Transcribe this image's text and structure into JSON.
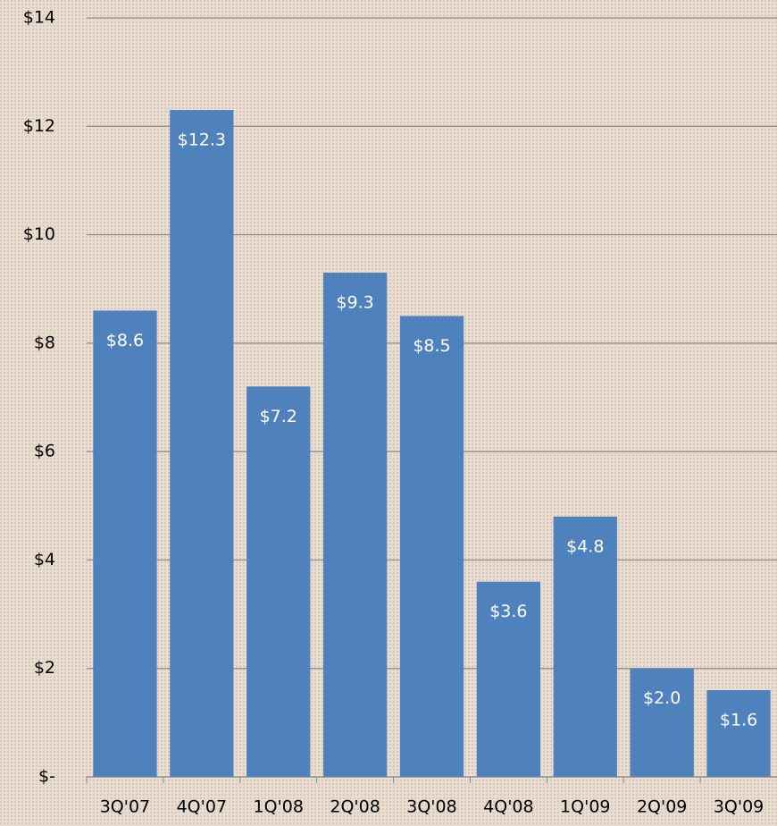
{
  "chart_data": {
    "type": "bar",
    "categories": [
      "3Q'07",
      "4Q'07",
      "1Q'08",
      "2Q'08",
      "3Q'08",
      "4Q'08",
      "1Q'09",
      "2Q'09",
      "3Q'09"
    ],
    "values": [
      8.6,
      12.3,
      7.2,
      9.3,
      8.5,
      3.6,
      4.8,
      2.0,
      1.6
    ],
    "value_labels": [
      "$8.6",
      "$12.3",
      "$7.2",
      "$9.3",
      "$8.5",
      "$3.6",
      "$4.8",
      "$2.0",
      "$1.6"
    ],
    "color": "#4f81bd",
    "ylim": [
      0,
      14
    ],
    "yticks": [
      {
        "value": 0,
        "label": "$-"
      },
      {
        "value": 2,
        "label": "$2"
      },
      {
        "value": 4,
        "label": "$4"
      },
      {
        "value": 6,
        "label": "$6"
      },
      {
        "value": 8,
        "label": "$8"
      },
      {
        "value": 10,
        "label": "$10"
      },
      {
        "value": 12,
        "label": "$12"
      },
      {
        "value": 14,
        "label": "$14"
      }
    ],
    "grid": true
  }
}
